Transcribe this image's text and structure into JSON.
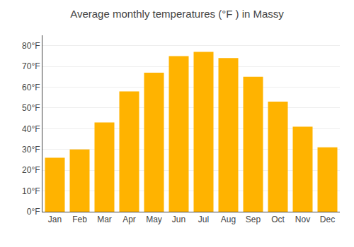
{
  "chart_data": {
    "type": "bar",
    "title": "Average monthly temperatures (°F ) in Massy",
    "categories": [
      "Jan",
      "Feb",
      "Mar",
      "Apr",
      "May",
      "Jun",
      "Jul",
      "Aug",
      "Sep",
      "Oct",
      "Nov",
      "Dec"
    ],
    "values": [
      26,
      30,
      43,
      58,
      67,
      75,
      77,
      74,
      65,
      53,
      41,
      31
    ],
    "color": "#FFB300",
    "ylim": [
      0,
      85
    ],
    "yticks": [
      {
        "value": 0,
        "label": "0°F"
      },
      {
        "value": 10,
        "label": "10°F"
      },
      {
        "value": 20,
        "label": "20°F"
      },
      {
        "value": 30,
        "label": "30°F"
      },
      {
        "value": 40,
        "label": "40°F"
      },
      {
        "value": 50,
        "label": "50°F"
      },
      {
        "value": 60,
        "label": "60°F"
      },
      {
        "value": 70,
        "label": "70°F"
      },
      {
        "value": 80,
        "label": "80°F"
      }
    ],
    "grid": true
  }
}
